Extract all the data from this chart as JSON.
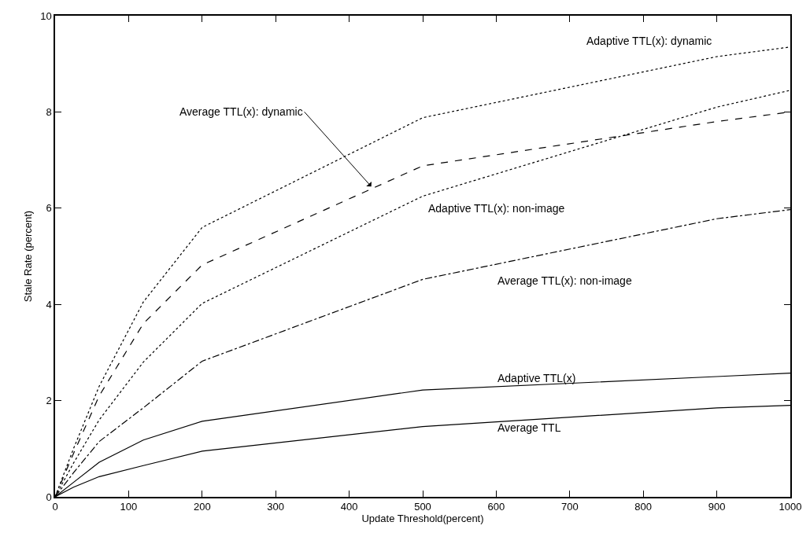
{
  "chart_data": {
    "type": "line",
    "xlabel": "Update Threshold(percent)",
    "ylabel": "Stale Rate (percent)",
    "x": [
      0,
      25,
      60,
      120,
      200,
      500,
      900,
      1000
    ],
    "series": [
      {
        "color": "#000000",
        "line_style": "dotted",
        "values": [
          0,
          1.0,
          2.3,
          4.05,
          5.6,
          7.88,
          9.15,
          9.35
        ]
      },
      {
        "color": "#000000",
        "line_style": "dashed",
        "values": [
          0,
          0.9,
          2.1,
          3.6,
          4.82,
          6.88,
          7.8,
          8.0
        ]
      },
      {
        "color": "#000000",
        "line_style": "dotted",
        "values": [
          0,
          0.7,
          1.6,
          2.8,
          4.02,
          6.25,
          8.1,
          8.45
        ]
      },
      {
        "color": "#000000",
        "line_style": "dashdot",
        "values": [
          0,
          0.5,
          1.15,
          1.85,
          2.82,
          4.52,
          5.78,
          5.97
        ]
      },
      {
        "color": "#000000",
        "line_style": "solid",
        "values": [
          0,
          0.3,
          0.72,
          1.18,
          1.57,
          2.22,
          2.5,
          2.57
        ]
      },
      {
        "color": "#000000",
        "line_style": "solid",
        "values": [
          0,
          0.2,
          0.42,
          0.65,
          0.95,
          1.46,
          1.85,
          1.9
        ]
      }
    ],
    "annotations": [
      {
        "text": "Adaptive TTL(x): dynamic",
        "x": 900,
        "y": 9.15
      },
      {
        "text": "Average TTL(x): dynamic",
        "x": 430,
        "y": 6.45
      },
      {
        "text": "Adaptive TTL(x): non-image",
        "x": 500,
        "y": 6.25
      },
      {
        "text": "Average TTL(x): non-image",
        "x": 600,
        "y": 4.85
      },
      {
        "text": "Adaptive TTL(x)",
        "x": 600,
        "y": 2.3
      },
      {
        "text": "Average TTL",
        "x": 600,
        "y": 1.6
      }
    ],
    "xlim": [
      0,
      1000
    ],
    "xticks": [
      0,
      100,
      200,
      300,
      400,
      500,
      600,
      700,
      800,
      900,
      1000
    ],
    "ylim": [
      0,
      10
    ],
    "yticks": [
      0,
      2,
      4,
      6,
      8,
      10
    ]
  }
}
